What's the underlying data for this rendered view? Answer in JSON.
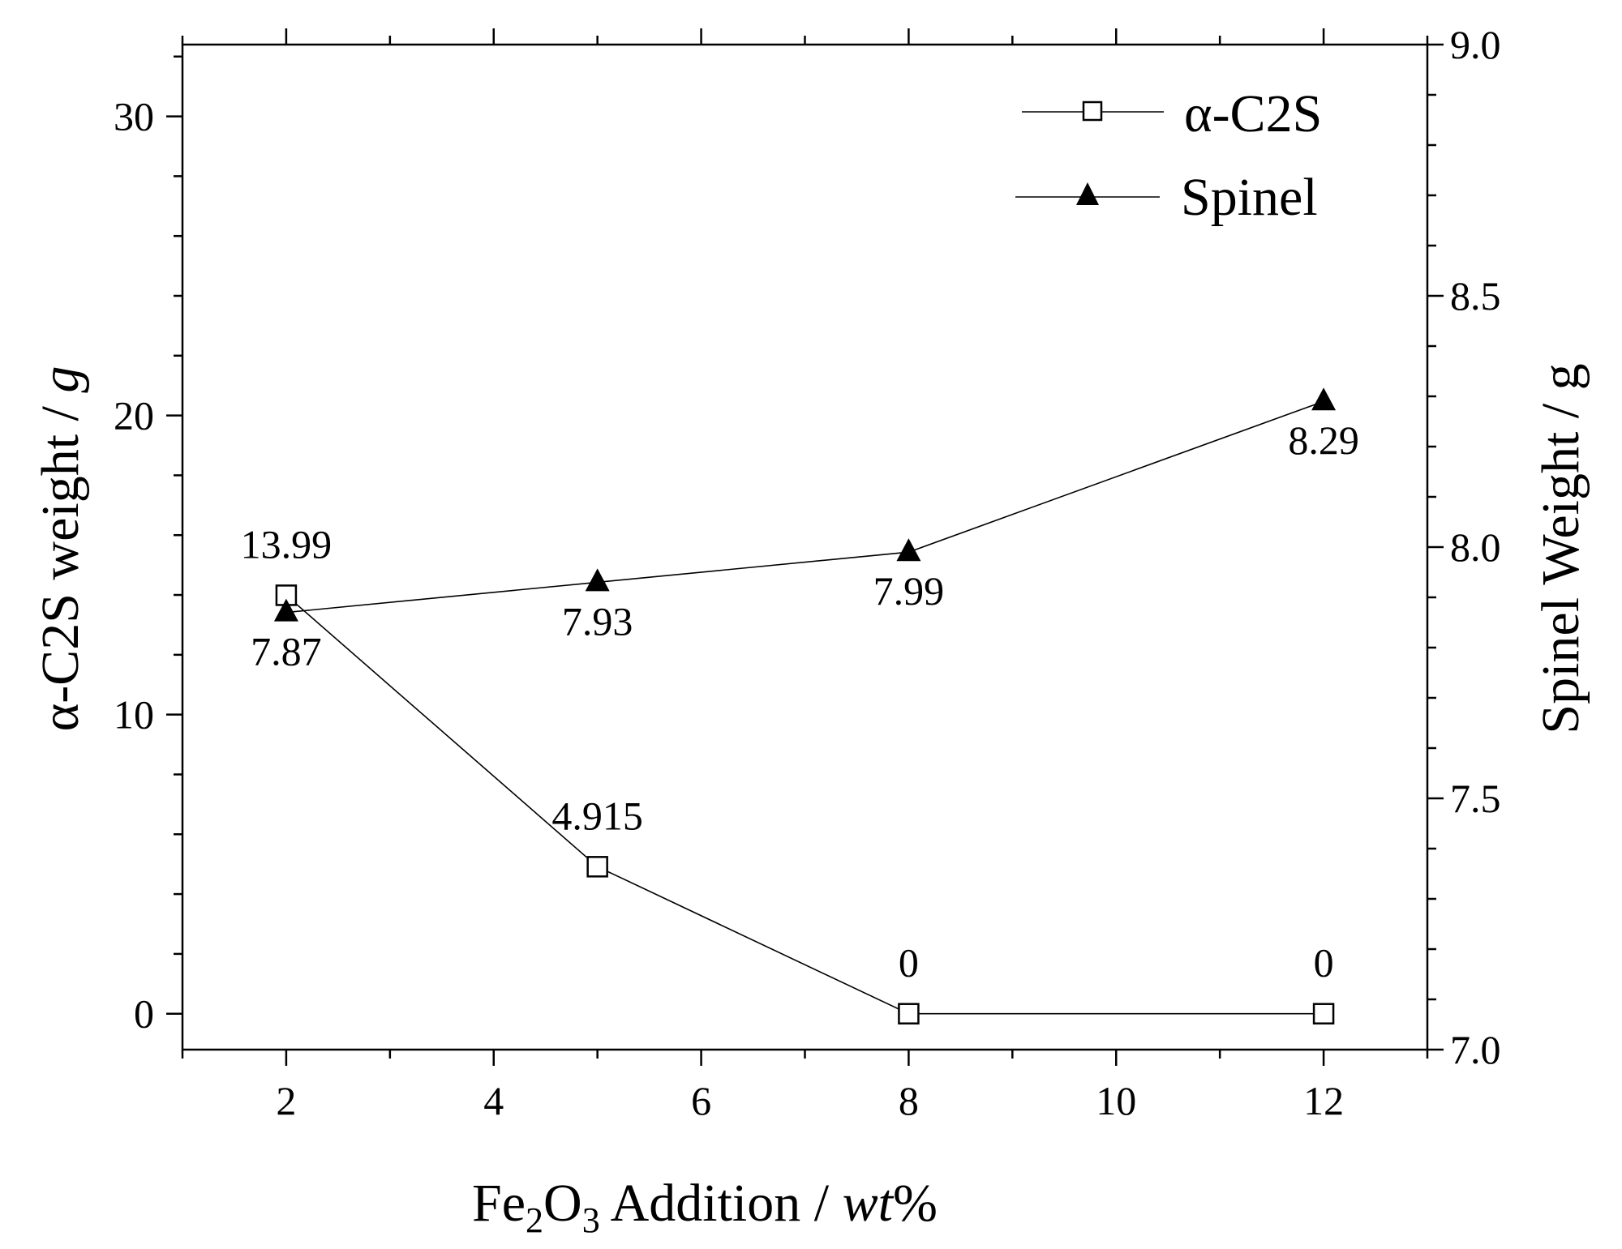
{
  "chart_data": {
    "type": "line",
    "title": "",
    "xlabel": {
      "base": "Fe",
      "sub1": "2",
      "mid": "O",
      "sub2": "3",
      "rest": " Addition / ",
      "italic": "wt",
      "unit": "%"
    },
    "ylabel_left": {
      "text": "α-C2S weight / ",
      "italic": "g"
    },
    "ylabel_right": "Spinel Weight / g",
    "xlim": [
      1,
      13
    ],
    "ylim_left": [
      -1.2,
      32.4
    ],
    "ylim_right": [
      7.0,
      9.0
    ],
    "x_ticks": [
      "2",
      "4",
      "6",
      "8",
      "10",
      "12"
    ],
    "y_left_ticks": [
      "0",
      "10",
      "20",
      "30"
    ],
    "y_right_ticks": [
      "7.0",
      "7.5",
      "8.0",
      "8.5",
      "9.0"
    ],
    "series": [
      {
        "name": "α-C2S",
        "axis": "left",
        "marker": "open-square",
        "x": [
          2,
          5,
          8,
          12
        ],
        "values": [
          13.99,
          4.915,
          0,
          0
        ],
        "labels": [
          "13.99",
          "4.915",
          "0",
          "0"
        ]
      },
      {
        "name": "Spinel",
        "axis": "right",
        "marker": "filled-triangle",
        "x": [
          2,
          5,
          8,
          12
        ],
        "values": [
          7.87,
          7.93,
          7.99,
          8.29
        ],
        "labels": [
          "7.87",
          "7.93",
          "7.99",
          "8.29"
        ]
      }
    ],
    "legend": {
      "position": "top-right",
      "entries": [
        "α-C2S",
        "Spinel"
      ]
    }
  }
}
